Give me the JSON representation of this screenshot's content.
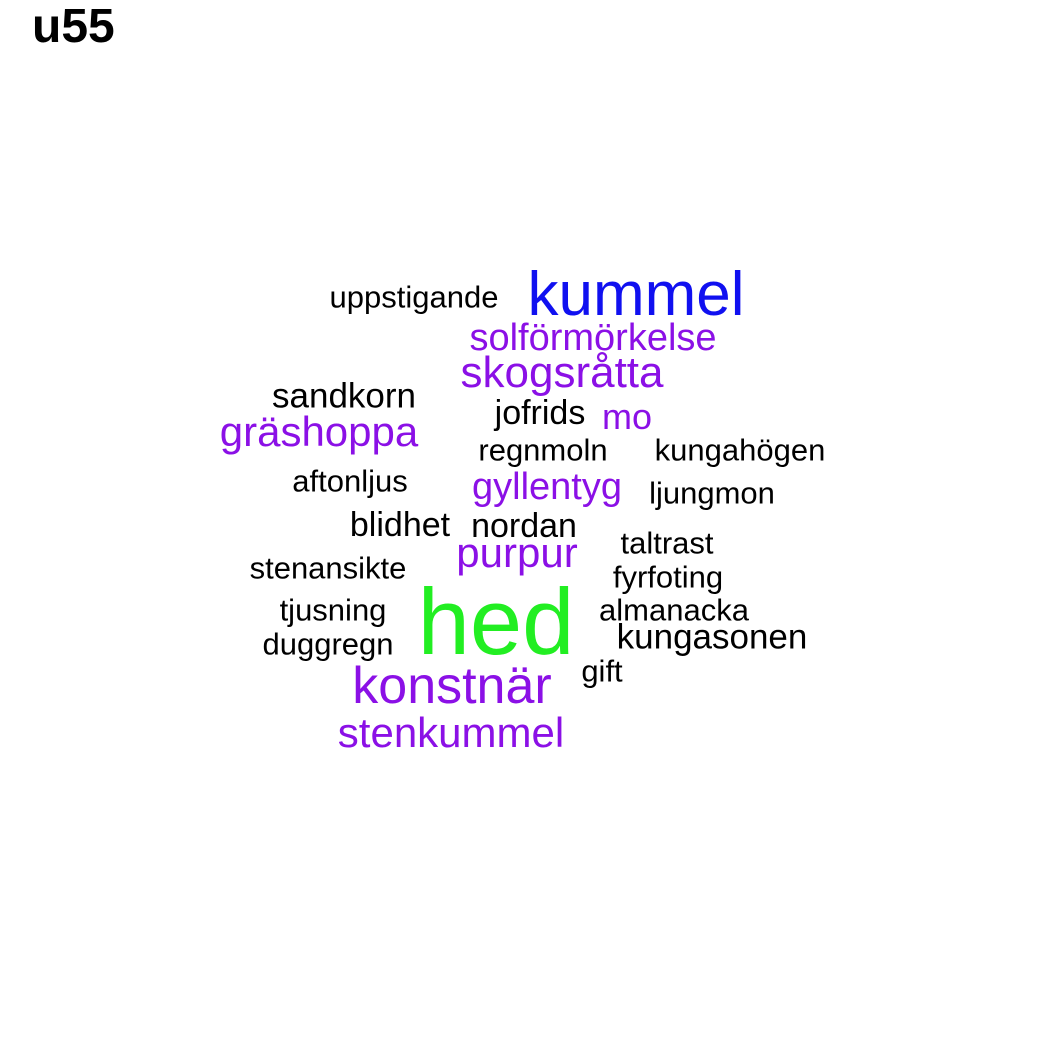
{
  "title": "u55",
  "colors": {
    "black": "#000000",
    "purple": "#8b10e6",
    "blue": "#1010f0",
    "green": "#22ee22"
  },
  "words": [
    {
      "text": "kummel",
      "color": "blue"
    },
    {
      "text": "uppstigande",
      "color": "black"
    },
    {
      "text": "solförmörkelse",
      "color": "purple"
    },
    {
      "text": "skogsråtta",
      "color": "purple"
    },
    {
      "text": "sandkorn",
      "color": "black"
    },
    {
      "text": "jofrids",
      "color": "black"
    },
    {
      "text": "mo",
      "color": "purple"
    },
    {
      "text": "gräshoppa",
      "color": "purple"
    },
    {
      "text": "regnmoln",
      "color": "black"
    },
    {
      "text": "kungahögen",
      "color": "black"
    },
    {
      "text": "aftonljus",
      "color": "black"
    },
    {
      "text": "gyllentyg",
      "color": "purple"
    },
    {
      "text": "ljungmon",
      "color": "black"
    },
    {
      "text": "blidhet",
      "color": "black"
    },
    {
      "text": "nordan",
      "color": "black"
    },
    {
      "text": "purpur",
      "color": "purple"
    },
    {
      "text": "taltrast",
      "color": "black"
    },
    {
      "text": "stenansikte",
      "color": "black"
    },
    {
      "text": "fyrfoting",
      "color": "black"
    },
    {
      "text": "tjusning",
      "color": "black"
    },
    {
      "text": "hed",
      "color": "green"
    },
    {
      "text": "almanacka",
      "color": "black"
    },
    {
      "text": "duggregn",
      "color": "black"
    },
    {
      "text": "kungasonen",
      "color": "black"
    },
    {
      "text": "gift",
      "color": "black"
    },
    {
      "text": "konstnär",
      "color": "purple"
    },
    {
      "text": "stenkummel",
      "color": "purple"
    }
  ]
}
